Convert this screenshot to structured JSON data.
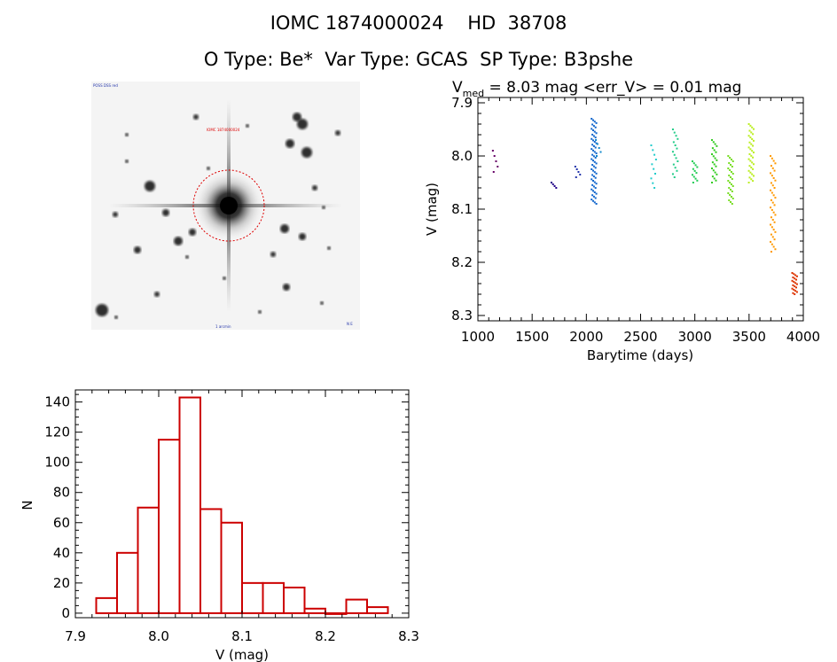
{
  "header": {
    "line1_id": "IOMC 1874000024",
    "line1_hd": "HD  38708",
    "line2_otype": "O Type: Be*",
    "line2_vartype": "Var Type: GCAS",
    "line2_sptype": "SP Type: B3pshe"
  },
  "sky_image": {
    "label_top_left": "POSS DSS red",
    "label_top_center": "IOMC 1874000024",
    "label_bottom_center": "1 arcmin",
    "label_bottom_right": "N E"
  },
  "colors": {
    "histogram": "#cc0000",
    "circle": "#dd0000",
    "axes": "#000000"
  },
  "chart_data": [
    {
      "type": "scatter",
      "title_prefix": "V",
      "title_subscript": "med",
      "title_rest": " = 8.03 mag <err_V> = 0.01 mag",
      "xlabel": "Barytime (days)",
      "ylabel": "V (mag)",
      "xlim": [
        1000,
        4000
      ],
      "ylim": [
        8.31,
        7.89
      ],
      "y_inverted": true,
      "x_ticks": [
        "1000",
        "1500",
        "2000",
        "2500",
        "3000",
        "3500",
        "4000"
      ],
      "y_ticks": [
        "7.9",
        "8.0",
        "8.1",
        "8.2",
        "8.3"
      ],
      "groups": [
        {
          "x": 1160,
          "ymin": 7.99,
          "ymax": 8.03,
          "color": "#660066",
          "n": 5
        },
        {
          "x": 1700,
          "ymin": 8.05,
          "ymax": 8.06,
          "color": "#220088",
          "n": 4
        },
        {
          "x": 1920,
          "ymin": 8.02,
          "ymax": 8.04,
          "color": "#2233aa",
          "n": 5
        },
        {
          "x": 2070,
          "ymin": 7.93,
          "ymax": 8.09,
          "color": "#1166cc",
          "n": 60
        },
        {
          "x": 2110,
          "ymin": 7.97,
          "ymax": 8.0,
          "color": "#1188cc",
          "n": 5
        },
        {
          "x": 2620,
          "ymin": 7.98,
          "ymax": 8.06,
          "color": "#22cccc",
          "n": 10
        },
        {
          "x": 2820,
          "ymin": 7.95,
          "ymax": 8.04,
          "color": "#22cc88",
          "n": 16
        },
        {
          "x": 3000,
          "ymin": 8.01,
          "ymax": 8.05,
          "color": "#22cc55",
          "n": 12
        },
        {
          "x": 3180,
          "ymin": 7.97,
          "ymax": 8.05,
          "color": "#33cc22",
          "n": 22
        },
        {
          "x": 3330,
          "ymin": 8.0,
          "ymax": 8.09,
          "color": "#77dd22",
          "n": 28
        },
        {
          "x": 3520,
          "ymin": 7.94,
          "ymax": 8.05,
          "color": "#bbee22",
          "n": 36
        },
        {
          "x": 3720,
          "ymin": 8.0,
          "ymax": 8.18,
          "color": "#ff9900",
          "n": 40
        },
        {
          "x": 3920,
          "ymin": 8.22,
          "ymax": 8.26,
          "color": "#dd3300",
          "n": 20
        }
      ]
    },
    {
      "type": "bar",
      "xlabel": "V (mag)",
      "ylabel": "N",
      "xlim": [
        7.9,
        8.3
      ],
      "ylim": [
        -3,
        148
      ],
      "x_ticks": [
        "7.9",
        "8.0",
        "8.1",
        "8.2",
        "8.3"
      ],
      "y_ticks": [
        "0",
        "20",
        "40",
        "60",
        "80",
        "100",
        "120",
        "140"
      ],
      "bin_width": 0.025,
      "bin_edges_start": 7.925,
      "counts": [
        10,
        40,
        70,
        115,
        143,
        69,
        60,
        20,
        20,
        17,
        3,
        0,
        9,
        4
      ]
    }
  ]
}
